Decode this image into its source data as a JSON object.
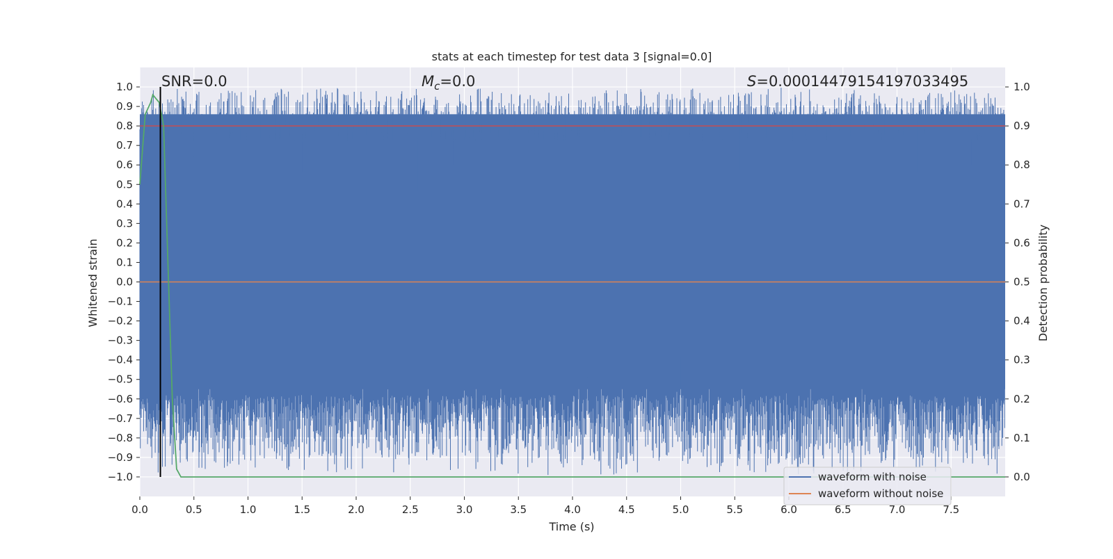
{
  "chart_data": {
    "type": "line",
    "title": "stats at each timestep for test data 3 [signal=0.0]",
    "xlabel": "Time (s)",
    "ylabel_left": "Whitened strain",
    "ylabel_right": "Detection probability",
    "xlim": [
      0.0,
      8.0
    ],
    "ylim_left": [
      -1.1,
      1.1
    ],
    "ylim_right": [
      -0.05,
      1.05
    ],
    "x_ticks": [
      "0.0",
      "0.5",
      "1.0",
      "1.5",
      "2.0",
      "2.5",
      "3.0",
      "3.5",
      "4.0",
      "4.5",
      "5.0",
      "5.5",
      "6.0",
      "6.5",
      "7.0",
      "7.5"
    ],
    "y_left_ticks": [
      "1.0",
      "0.9",
      "0.8",
      "0.7",
      "0.6",
      "0.5",
      "0.4",
      "0.3",
      "0.2",
      "0.1",
      "0.0",
      "−0.1",
      "−0.2",
      "−0.3",
      "−0.4",
      "−0.5",
      "−0.6",
      "−0.7",
      "−0.8",
      "−0.9",
      "−1.0"
    ],
    "y_right_ticks": [
      "1.0",
      "0.9",
      "0.8",
      "0.7",
      "0.6",
      "0.5",
      "0.4",
      "0.3",
      "0.2",
      "0.1",
      "0.0"
    ],
    "grid": true,
    "legend_position": "lower-right",
    "annotations": {
      "snr": "SNR=0.0",
      "mc_symbol": "M",
      "mc_subscript": "c",
      "mc_value": "=0.0",
      "s_symbol": "S",
      "s_value": "=0.00014479154197033495"
    },
    "series": [
      {
        "name": "waveform with noise",
        "axis": "left",
        "color": "#4c72b0",
        "description": "dense noisy strain, roughly within [-1.0, 1.0] across the full time range"
      },
      {
        "name": "waveform without noise",
        "axis": "left",
        "color": "#dd8452",
        "values_constant": 0.0
      },
      {
        "axis": "right",
        "color": "#55a868",
        "x": [
          0.0,
          0.05,
          0.1,
          0.12,
          0.15,
          0.18,
          0.22,
          0.26,
          0.3,
          0.34,
          0.38,
          0.5,
          1.0,
          2.0,
          4.0,
          6.0,
          8.0
        ],
        "values": [
          0.75,
          0.93,
          0.96,
          0.98,
          0.97,
          0.96,
          0.9,
          0.55,
          0.2,
          0.02,
          0.0,
          0.0,
          0.0,
          0.0,
          0.0,
          0.0,
          0.0
        ]
      },
      {
        "axis": "right",
        "color": "#c44e52",
        "values_constant": 0.9
      }
    ],
    "markers": {
      "vertical_line_x": 0.19,
      "vertical_line_color": "#000000"
    },
    "colors": {
      "plot_background": "#eaeaf2",
      "grid": "#ffffff",
      "noise_band": "#4c72b0"
    }
  }
}
